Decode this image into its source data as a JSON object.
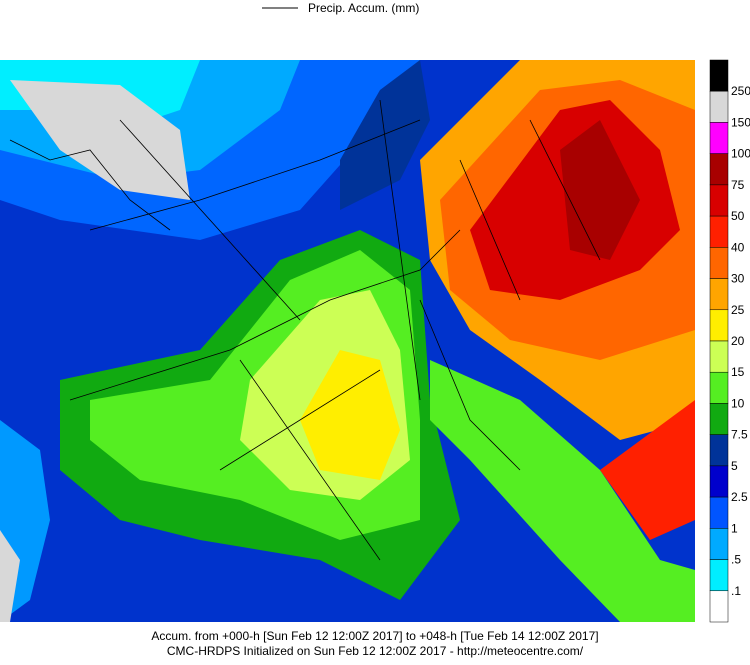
{
  "header": {
    "legend_label": "Precip. Accum. (mm)"
  },
  "colorbar": {
    "labels": [
      "250",
      "150",
      "100",
      "75",
      "50",
      "40",
      "30",
      "25",
      "20",
      "15",
      "10",
      "7.5",
      "5",
      "2.5",
      "1",
      ".5",
      ".1"
    ],
    "colors": [
      "#000000",
      "#d8d8d8",
      "#ff00ff",
      "#a80000",
      "#d80000",
      "#ff2000",
      "#ff6600",
      "#ffa500",
      "#ffee00",
      "#ccff55",
      "#55ee22",
      "#11aa11",
      "#003399",
      "#0000cc",
      "#0055ff",
      "#00aaff",
      "#00eeff",
      "#ffffff"
    ]
  },
  "footer": {
    "line1": "Accum. from +000-h [Sun Feb 12 12:00Z 2017] to +048-h [Tue Feb 14 12:00Z 2017]",
    "line2": "CMC-HRDPS Initialized on Sun Feb 12 12:00Z 2017 - http://meteocentre.com/"
  }
}
